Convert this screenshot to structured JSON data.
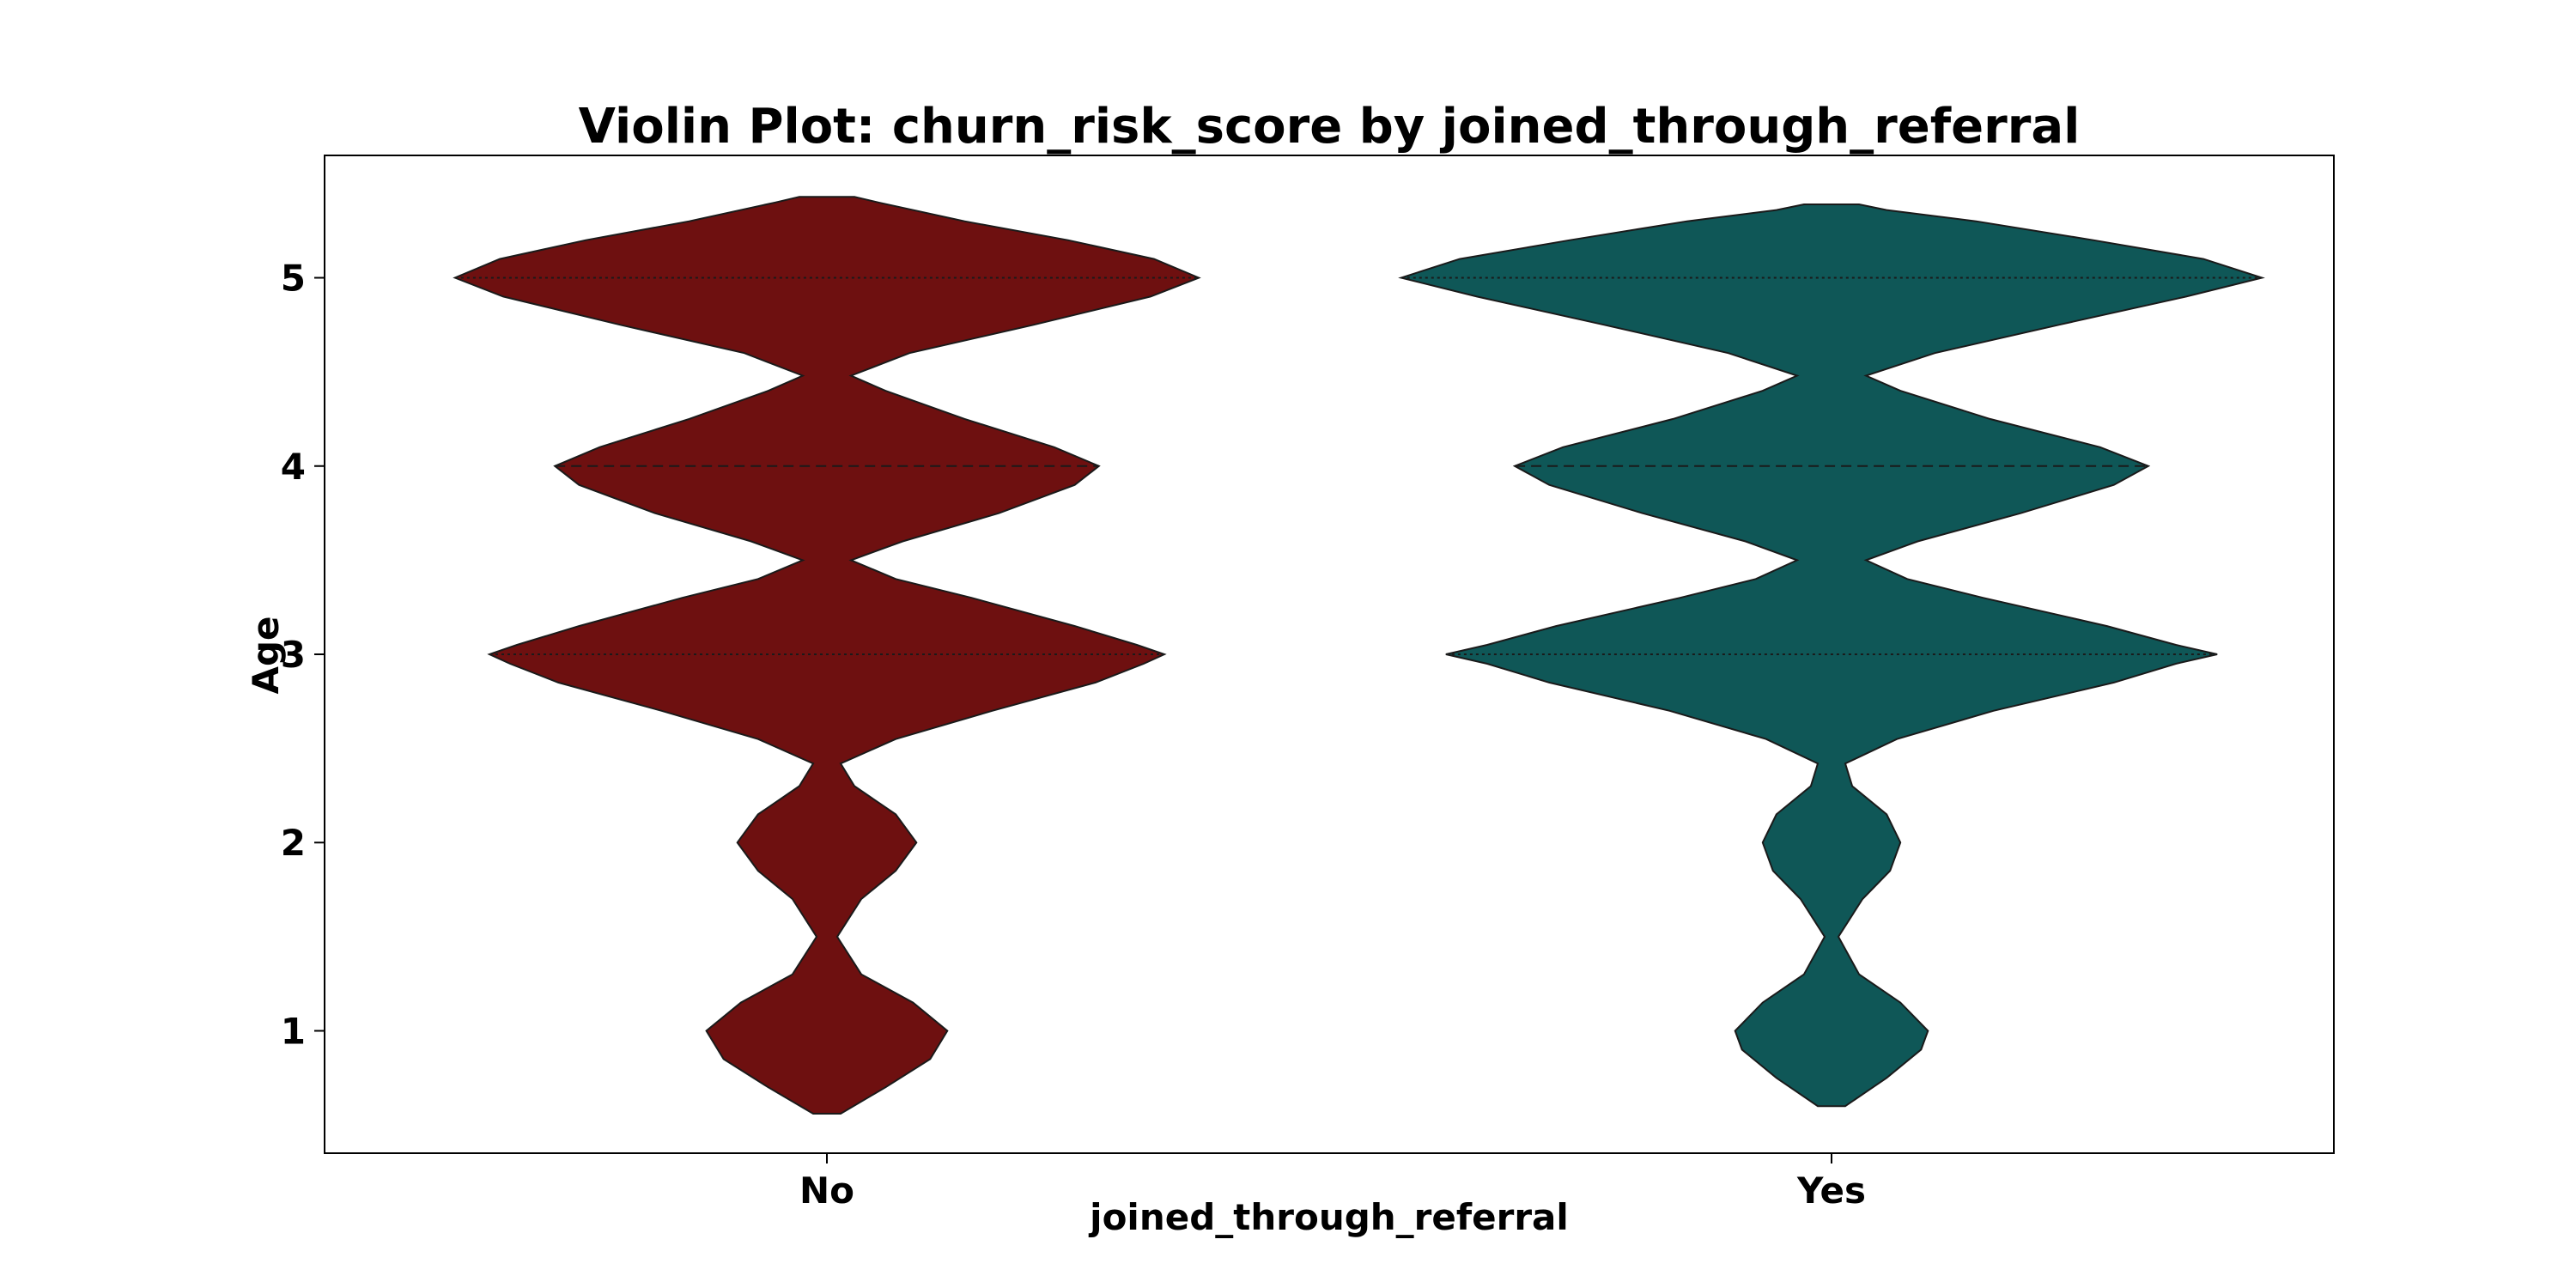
{
  "chart_data": {
    "type": "violin",
    "title": "Violin Plot: churn_risk_score by joined_through_referral",
    "xlabel": "joined_through_referral",
    "ylabel": "Age",
    "categories": [
      "No",
      "Yes"
    ],
    "yticks": [
      1,
      2,
      3,
      4,
      5
    ],
    "ylim": [
      0.35,
      5.65
    ],
    "grid": false,
    "legend": "none",
    "inner": "quartile",
    "series": [
      {
        "category": "No",
        "color": "#6e1010",
        "y_min": 0.56,
        "y_max": 5.43,
        "quartiles": [
          3,
          4,
          5
        ],
        "density_profile": [
          [
            0.56,
            0.04
          ],
          [
            0.7,
            0.17
          ],
          [
            0.85,
            0.3
          ],
          [
            1.0,
            0.35
          ],
          [
            1.15,
            0.25
          ],
          [
            1.3,
            0.1
          ],
          [
            1.5,
            0.03
          ],
          [
            1.7,
            0.1
          ],
          [
            1.85,
            0.2
          ],
          [
            2.0,
            0.26
          ],
          [
            2.15,
            0.2
          ],
          [
            2.3,
            0.08
          ],
          [
            2.42,
            0.04
          ],
          [
            2.55,
            0.2
          ],
          [
            2.7,
            0.48
          ],
          [
            2.85,
            0.78
          ],
          [
            2.95,
            0.92
          ],
          [
            3.0,
            0.98
          ],
          [
            3.05,
            0.9
          ],
          [
            3.15,
            0.72
          ],
          [
            3.3,
            0.42
          ],
          [
            3.4,
            0.2
          ],
          [
            3.5,
            0.07
          ],
          [
            3.6,
            0.22
          ],
          [
            3.75,
            0.5
          ],
          [
            3.9,
            0.72
          ],
          [
            4.0,
            0.79
          ],
          [
            4.1,
            0.66
          ],
          [
            4.25,
            0.4
          ],
          [
            4.4,
            0.17
          ],
          [
            4.48,
            0.07
          ],
          [
            4.6,
            0.24
          ],
          [
            4.75,
            0.6
          ],
          [
            4.9,
            0.94
          ],
          [
            5.0,
            1.08
          ],
          [
            5.1,
            0.95
          ],
          [
            5.2,
            0.7
          ],
          [
            5.3,
            0.4
          ],
          [
            5.4,
            0.15
          ],
          [
            5.43,
            0.08
          ]
        ]
      },
      {
        "category": "Yes",
        "color": "#0f5757",
        "y_min": 0.6,
        "y_max": 5.39,
        "quartiles": [
          3,
          4,
          5
        ],
        "density_profile": [
          [
            0.6,
            0.04
          ],
          [
            0.75,
            0.16
          ],
          [
            0.9,
            0.26
          ],
          [
            1.0,
            0.28
          ],
          [
            1.15,
            0.2
          ],
          [
            1.3,
            0.08
          ],
          [
            1.5,
            0.02
          ],
          [
            1.7,
            0.09
          ],
          [
            1.85,
            0.17
          ],
          [
            2.0,
            0.2
          ],
          [
            2.15,
            0.16
          ],
          [
            2.3,
            0.06
          ],
          [
            2.42,
            0.04
          ],
          [
            2.55,
            0.19
          ],
          [
            2.7,
            0.47
          ],
          [
            2.85,
            0.82
          ],
          [
            2.95,
            1.0
          ],
          [
            3.0,
            1.12
          ],
          [
            3.05,
            1.0
          ],
          [
            3.15,
            0.8
          ],
          [
            3.3,
            0.44
          ],
          [
            3.4,
            0.22
          ],
          [
            3.5,
            0.1
          ],
          [
            3.6,
            0.25
          ],
          [
            3.75,
            0.55
          ],
          [
            3.9,
            0.82
          ],
          [
            4.0,
            0.92
          ],
          [
            4.1,
            0.78
          ],
          [
            4.25,
            0.46
          ],
          [
            4.4,
            0.2
          ],
          [
            4.48,
            0.1
          ],
          [
            4.6,
            0.3
          ],
          [
            4.75,
            0.66
          ],
          [
            4.9,
            1.03
          ],
          [
            5.0,
            1.25
          ],
          [
            5.1,
            1.08
          ],
          [
            5.2,
            0.76
          ],
          [
            5.3,
            0.42
          ],
          [
            5.36,
            0.16
          ],
          [
            5.39,
            0.08
          ]
        ]
      }
    ]
  }
}
